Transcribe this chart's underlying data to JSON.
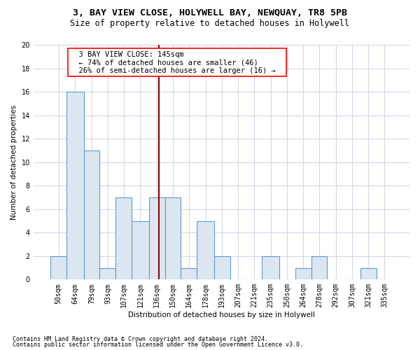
{
  "title1": "3, BAY VIEW CLOSE, HOLYWELL BAY, NEWQUAY, TR8 5PB",
  "title2": "Size of property relative to detached houses in Holywell",
  "xlabel": "Distribution of detached houses by size in Holywell",
  "ylabel": "Number of detached properties",
  "footnote1": "Contains HM Land Registry data © Crown copyright and database right 2024.",
  "footnote2": "Contains public sector information licensed under the Open Government Licence v3.0.",
  "annotation_line1": "3 BAY VIEW CLOSE: 145sqm",
  "annotation_line2": "← 74% of detached houses are smaller (46)",
  "annotation_line3": "26% of semi-detached houses are larger (16) →",
  "property_size": 145,
  "bar_edge_color": "#5b9bd5",
  "bar_face_color": "#dce6f1",
  "vline_color": "#8b0000",
  "background_color": "#ffffff",
  "categories": [
    "50sqm",
    "64sqm",
    "79sqm",
    "93sqm",
    "107sqm",
    "121sqm",
    "136sqm",
    "150sqm",
    "164sqm",
    "178sqm",
    "193sqm",
    "207sqm",
    "221sqm",
    "235sqm",
    "250sqm",
    "264sqm",
    "278sqm",
    "292sqm",
    "307sqm",
    "321sqm",
    "335sqm"
  ],
  "values": [
    2,
    16,
    11,
    1,
    7,
    5,
    7,
    7,
    1,
    5,
    2,
    0,
    0,
    2,
    0,
    1,
    2,
    0,
    0,
    1,
    0
  ],
  "bin_edges": [
    50,
    64,
    79,
    93,
    107,
    121,
    136,
    150,
    164,
    178,
    193,
    207,
    221,
    235,
    250,
    264,
    278,
    292,
    307,
    321,
    335,
    349
  ],
  "ylim": [
    0,
    20
  ],
  "yticks": [
    0,
    2,
    4,
    6,
    8,
    10,
    12,
    14,
    16,
    18,
    20
  ],
  "grid_color": "#d0d8e8",
  "title_fontsize": 9.5,
  "subtitle_fontsize": 8.5,
  "axis_label_fontsize": 7.5,
  "tick_fontsize": 7,
  "annotation_fontsize": 7.5,
  "footnote_fontsize": 6
}
